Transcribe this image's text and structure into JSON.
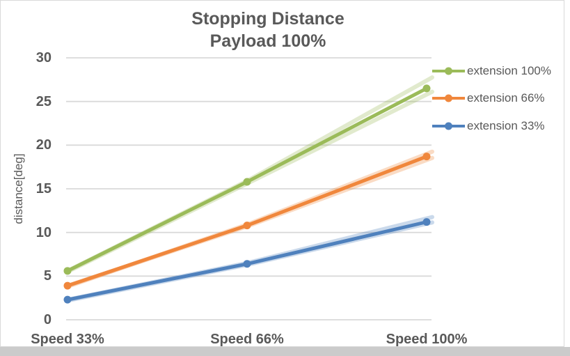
{
  "frame": {
    "background": "#FFFFFF",
    "border_color": "#D9D9D9",
    "outside_strip_color": "#CBCBCB"
  },
  "chart_data": {
    "type": "line",
    "title": "Stopping Distance",
    "subtitle": "Payload 100%",
    "ylabel": "distance[deg]",
    "xlabel": "",
    "categories": [
      "Speed 33%",
      "Speed 66%",
      "Speed 100%"
    ],
    "ylim": [
      0,
      30
    ],
    "ytick_step": 5,
    "ytick_labels": [
      "0",
      "5",
      "10",
      "15",
      "20",
      "25",
      "30"
    ],
    "grid": true,
    "grid_color": "#D9D9D9",
    "text_color": "#595959",
    "legend_position": "right",
    "legend_entries": [
      "extension 100%",
      "extension 66%",
      "extension 33%"
    ],
    "series": [
      {
        "name": "extension 100%",
        "color": "#9BBB59",
        "values": [
          5.6,
          15.8,
          26.5
        ]
      },
      {
        "name": "extension 66%",
        "color": "#F0873C",
        "values": [
          3.9,
          10.8,
          18.7
        ]
      },
      {
        "name": "extension 33%",
        "color": "#4F81BD",
        "values": [
          2.3,
          6.4,
          11.2
        ]
      }
    ],
    "faint_trend_lines": [
      {
        "series": "extension 100%",
        "color": "#9BBB59",
        "opacity": 0.3,
        "lines": [
          [
            5.6,
            15.9,
            27.4
          ],
          [
            5.5,
            15.6,
            25.8
          ]
        ]
      },
      {
        "series": "extension 66%",
        "color": "#F0873C",
        "opacity": 0.3,
        "lines": [
          [
            3.9,
            10.7,
            18.3
          ],
          [
            3.8,
            10.9,
            19.0
          ]
        ]
      },
      {
        "series": "extension 33%",
        "color": "#4F81BD",
        "opacity": 0.3,
        "lines": [
          [
            2.3,
            6.5,
            11.6
          ],
          [
            2.2,
            6.3,
            11.0
          ]
        ]
      }
    ]
  }
}
